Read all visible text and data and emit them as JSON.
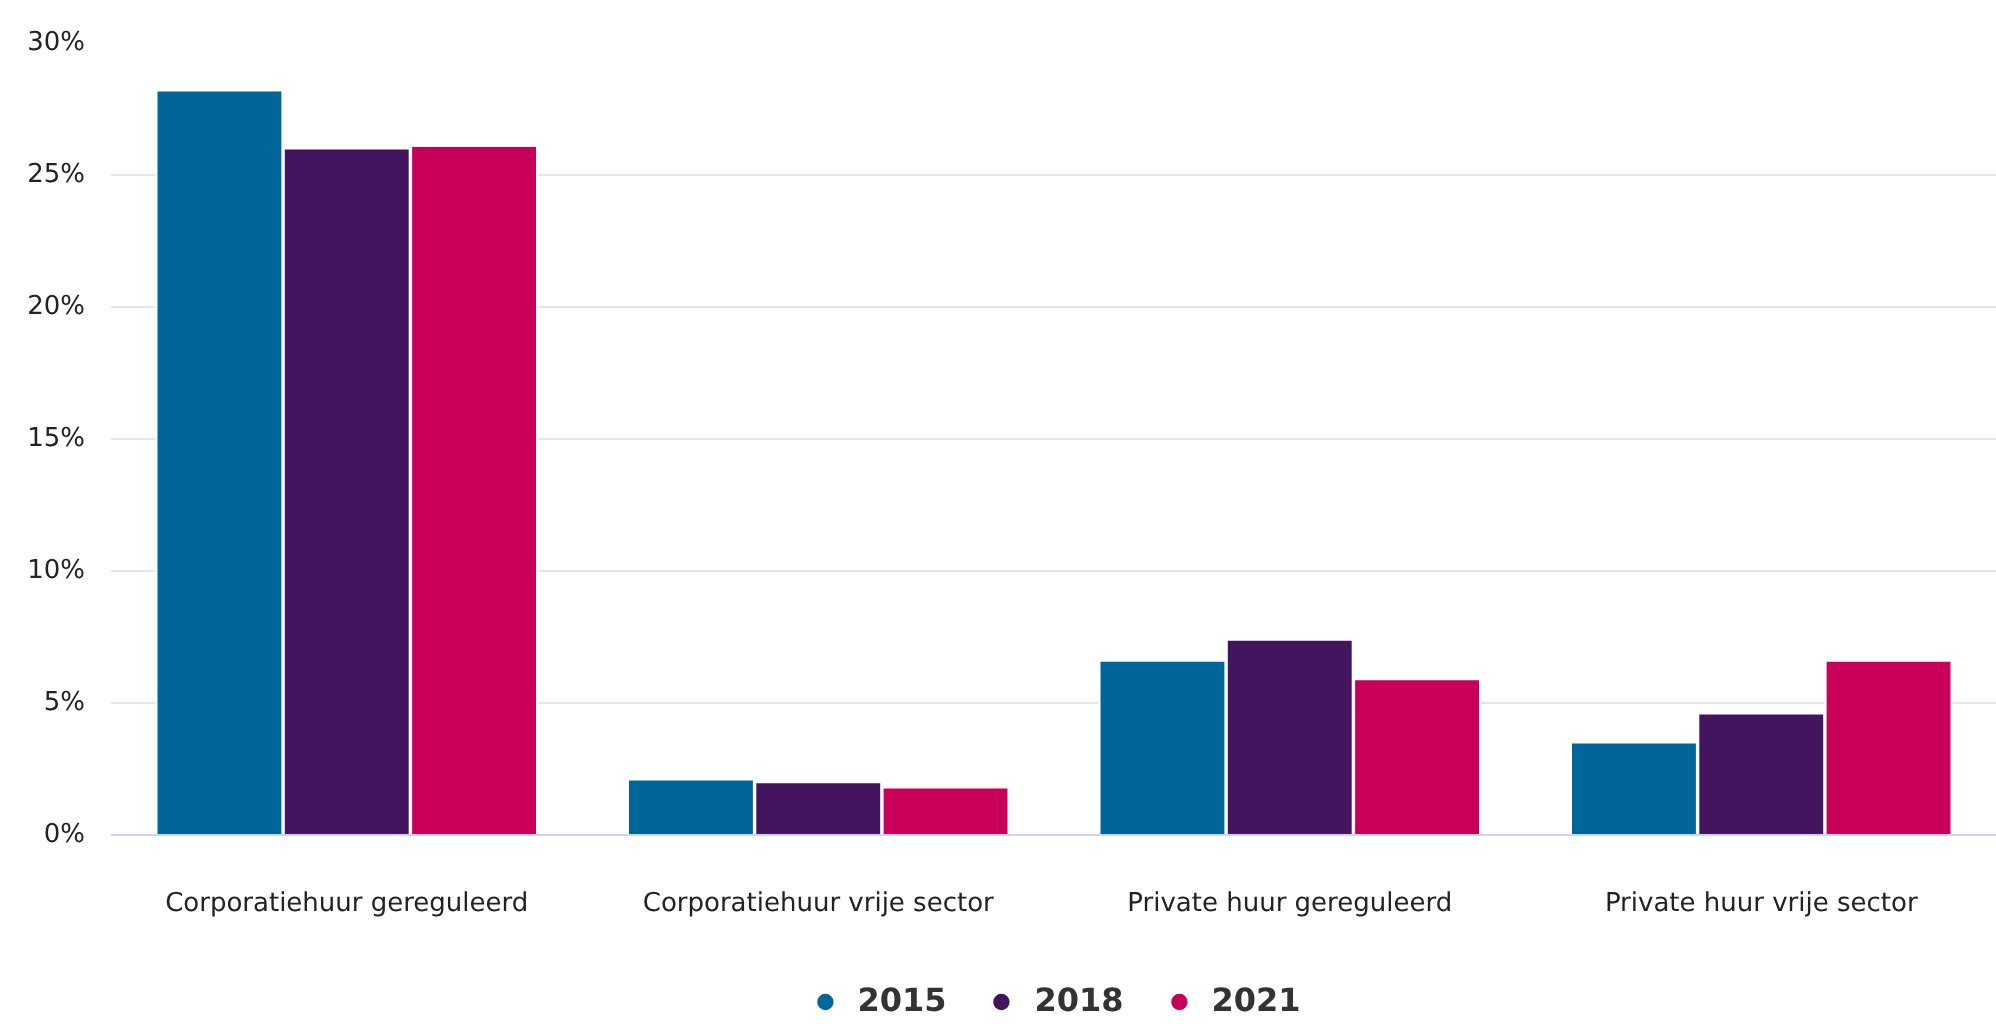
{
  "chart_data": {
    "type": "bar",
    "categories": [
      "Corporatiehuur gereguleerd",
      "Corporatiehuur vrije sector",
      "Private huur gereguleerd",
      "Private huur vrije sector"
    ],
    "series": [
      {
        "name": "2015",
        "color": "#006699",
        "values": [
          28.2,
          2.1,
          6.6,
          3.5
        ]
      },
      {
        "name": "2018",
        "color": "#43155e",
        "values": [
          26.0,
          2.0,
          7.4,
          4.6
        ]
      },
      {
        "name": "2021",
        "color": "#c8005a",
        "values": [
          26.1,
          1.8,
          5.9,
          6.6
        ]
      }
    ],
    "ylim": [
      0,
      30
    ],
    "yticks": [
      {
        "value": 0,
        "label": "0%"
      },
      {
        "value": 5,
        "label": "5%"
      },
      {
        "value": 10,
        "label": "10%"
      },
      {
        "value": 15,
        "label": "15%"
      },
      {
        "value": 20,
        "label": "20%"
      },
      {
        "value": 25,
        "label": "25%"
      },
      {
        "value": 30,
        "label": "30%"
      }
    ],
    "grid": "y",
    "legend": "bottom"
  }
}
